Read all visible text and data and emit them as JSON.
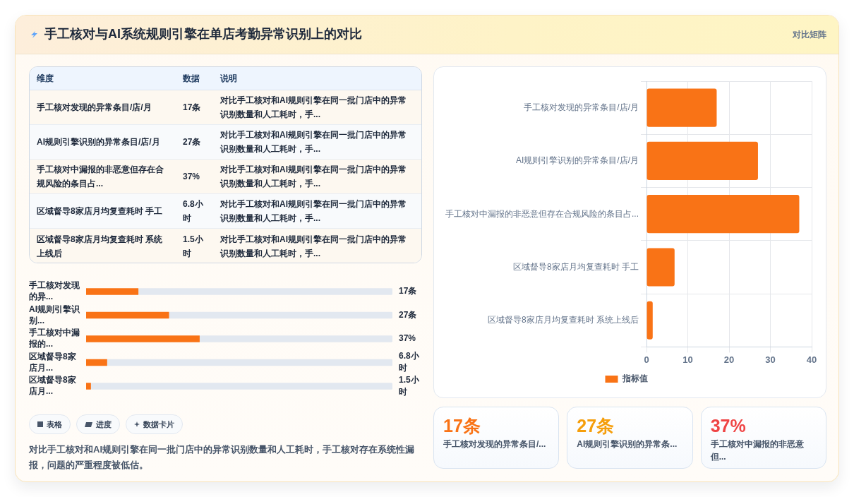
{
  "chart_data": [
    {
      "type": "other",
      "title": "手工核对与AI系统规则引擎在单店考勤异常识别上的对比",
      "categories": [
        "手工核对发现的异常条目/店/月",
        "AI规则引擎识别的异常条目/店/月",
        "手工核对中漏报的非恶意但存在合规风险的条目占...",
        "区域督导8家店月均复查耗时 手工",
        "区域督导8家店月均复查耗时 系统上线后"
      ],
      "value_labels": [
        "17条",
        "27条",
        "37%",
        "6.8小时",
        "1.5小时"
      ],
      "annotations": [
        "维度",
        "数据",
        "说明",
        "对比手工核对和AI规则引擎在同一批门店中的异常识别数量和人工耗时，手...",
        "对比手工核对和AI规则引擎在同一批门店中的异常识别数量和人工耗时，手...",
        "对比手工核对和AI规则引擎在同一批门店中的异常识别数量和人工耗时，手...",
        "对比手工核对和AI规则引擎在同一批门店中的异常识别数量和人工耗时，手...",
        "对比手工核对和AI规则引擎在同一批门店中的异常识别数量和人工耗时，手..."
      ]
    },
    {
      "type": "bar",
      "orientation": "horizontal",
      "stacked": true,
      "categories": [
        "手工核对发现的异...",
        "AI规则引擎识别...",
        "手工核对中漏报的...",
        "区域督导8家店月...",
        "区域督导8家店月..."
      ],
      "series": [
        {
          "color": "#f97316",
          "values": [
            17,
            27,
            37,
            6.8,
            1.5
          ],
          "value_labels": [
            "17条",
            "27条",
            "37%",
            "6.8小时",
            "1.5小时"
          ]
        },
        {
          "color": "#e2e8f0",
          "values": [
            83,
            73,
            63,
            93.2,
            98.5
          ]
        }
      ],
      "xlim": [
        0,
        100
      ],
      "tick_labels": "y",
      "annotations": [
        "表格",
        "进度",
        "数据卡片",
        "对比手工核对和AI规则引擎在同一批门店中的异常识别数量和人工耗时，手工核对存在系统性漏报，问题的严重程度被低估。"
      ]
    },
    {
      "type": "bar",
      "orientation": "horizontal",
      "subtitle": "对比矩阵",
      "categories": [
        "手工核对发现的异常条目/店/月",
        "AI规则引擎识别的异常条目/店/月",
        "手工核对中漏报的非恶意但存在合规风险的条目占...",
        "区域督导8家店月均复查耗时 手工",
        "区域督导8家店月均复查耗时 系统上线后"
      ],
      "series": [
        {
          "name": "指标值",
          "color": "#f97316",
          "values": [
            17,
            27,
            37,
            6.8,
            1.5
          ]
        }
      ],
      "xlim": [
        0,
        40
      ],
      "xticks": [
        0,
        10,
        20,
        30,
        40
      ],
      "grid": true,
      "legend": "bottom"
    },
    {
      "type": "other",
      "categories": [
        "手工核对发现的异常条目/...",
        "AI规则引擎识别的异常条...",
        "手工核对中漏报的非恶意但..."
      ],
      "value_labels": [
        "17条",
        "27条",
        "37%"
      ],
      "colors": [
        "#f97316",
        "#f59e0b",
        "#ef4444"
      ]
    }
  ]
}
